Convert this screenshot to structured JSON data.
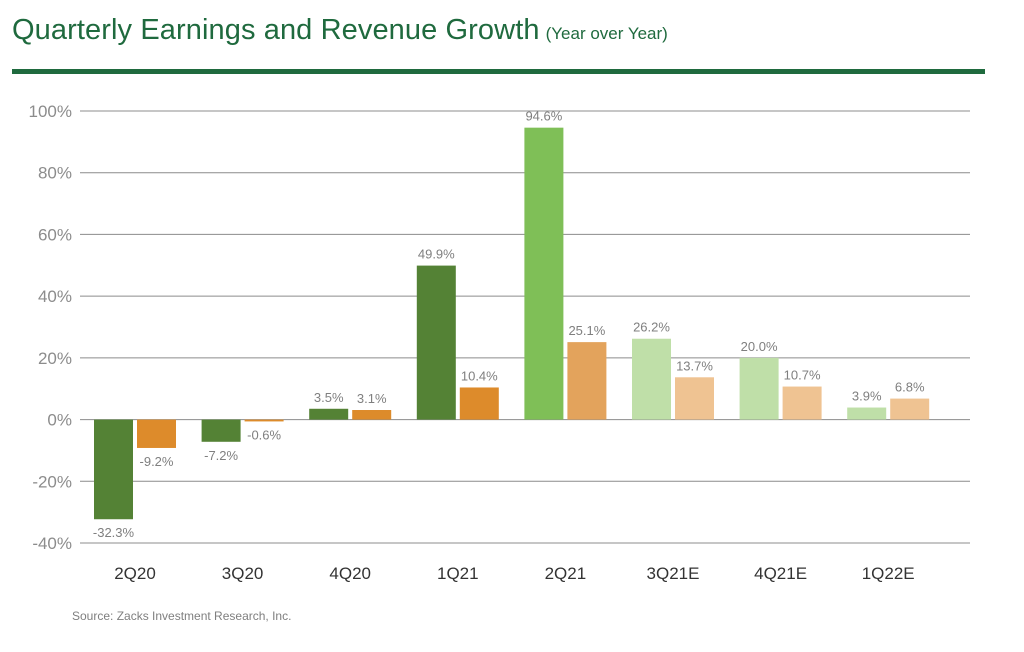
{
  "header": {
    "title": "Quarterly Earnings and Revenue Growth",
    "subtitle": "(Year over Year)"
  },
  "source": "Source: Zacks Investment Research, Inc.",
  "chart_data": {
    "type": "bar",
    "categories": [
      "2Q20",
      "3Q20",
      "4Q20",
      "1Q21",
      "2Q21",
      "3Q21E",
      "4Q21E",
      "1Q22E"
    ],
    "series": [
      {
        "values": [
          -32.3,
          -7.2,
          3.5,
          49.9,
          94.6,
          26.2,
          20.0,
          3.9
        ],
        "labels": [
          "-32.3%",
          "-7.2%",
          "3.5%",
          "49.9%",
          "94.6%",
          "26.2%",
          "20.0%",
          "3.9%"
        ],
        "colors": [
          "#548235",
          "#548235",
          "#548235",
          "#548235",
          "#7fbf57",
          "#bfdfa8",
          "#bfdfa8",
          "#bfdfa8"
        ]
      },
      {
        "values": [
          -9.2,
          -0.6,
          3.1,
          10.4,
          25.1,
          13.7,
          10.7,
          6.8
        ],
        "labels": [
          "-9.2%",
          "-0.6%",
          "3.1%",
          "10.4%",
          "25.1%",
          "13.7%",
          "10.7%",
          "6.8%"
        ],
        "colors": [
          "#dd8b2b",
          "#dd8b2b",
          "#dd8b2b",
          "#dd8b2b",
          "#e3a35c",
          "#efc392",
          "#efc392",
          "#efc392"
        ]
      }
    ],
    "ylim": [
      -40,
      100
    ],
    "yticks": [
      -40,
      -20,
      0,
      20,
      40,
      60,
      80,
      100
    ],
    "ytick_labels": [
      "-40%",
      "-20%",
      "0%",
      "20%",
      "40%",
      "60%",
      "80%",
      "100%"
    ],
    "grid": true,
    "legend": "none"
  }
}
